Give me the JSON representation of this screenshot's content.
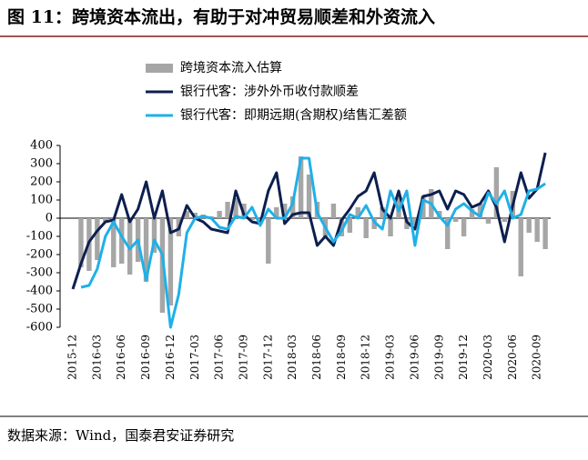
{
  "title": "图 11：跨境资本流出，有助于对冲贸易顺差和外资流入",
  "source": "数据来源：Wind，国泰君安证券研究",
  "chart_data": {
    "type": "bar-line",
    "categories": [
      "2015-12",
      null,
      null,
      "2016-03",
      null,
      null,
      "2016-06",
      null,
      null,
      "2016-09",
      null,
      null,
      "2016-12",
      null,
      null,
      "2017-03",
      null,
      null,
      "2017-06",
      null,
      null,
      "2017-09",
      null,
      null,
      "2017-12",
      null,
      null,
      "2018-03",
      null,
      null,
      "2018-06",
      null,
      null,
      "2018-09",
      null,
      null,
      "2018-12",
      null,
      null,
      "2019-03",
      null,
      null,
      "2019-06",
      null,
      null,
      "2019-09",
      null,
      null,
      "2019-12",
      null,
      null,
      "2020-03",
      null,
      null,
      "2020-06",
      null,
      null,
      "2020-09",
      null
    ],
    "series": [
      {
        "name": "跨境资本流入估算",
        "type": "bar",
        "color": "#a6a6a6",
        "values": [
          null,
          -270,
          -290,
          -230,
          -20,
          -270,
          -250,
          -310,
          -240,
          -350,
          -190,
          -520,
          -480,
          -100,
          40,
          30,
          20,
          10,
          40,
          90,
          110,
          80,
          -10,
          0,
          -250,
          60,
          80,
          120,
          340,
          240,
          90,
          -110,
          80,
          -100,
          -80,
          60,
          -110,
          -60,
          60,
          -100,
          120,
          -60,
          -40,
          120,
          160,
          40,
          -170,
          -20,
          -100,
          50,
          80,
          -30,
          280,
          -20,
          150,
          -320,
          -80,
          -130,
          -170
        ]
      },
      {
        "name": "银行代客：涉外外币收付款顺差",
        "type": "line",
        "color": "#0d1f4f",
        "values": [
          -390,
          -250,
          -130,
          -70,
          -20,
          -10,
          130,
          -20,
          50,
          200,
          0,
          150,
          -80,
          -60,
          70,
          0,
          -20,
          -60,
          -70,
          -80,
          150,
          20,
          -20,
          -30,
          150,
          250,
          -30,
          20,
          30,
          30,
          -150,
          -100,
          -150,
          -10,
          50,
          120,
          150,
          250,
          50,
          0,
          150,
          -20,
          -60,
          120,
          130,
          150,
          50,
          150,
          130,
          60,
          80,
          150,
          60,
          -130,
          70,
          250,
          110,
          160,
          360
        ]
      },
      {
        "name": "银行代客：即期远期(含期权)结售汇差额",
        "type": "line",
        "color": "#1fb0e8",
        "values": [
          null,
          -380,
          -370,
          -280,
          -100,
          -20,
          -100,
          -170,
          -120,
          -340,
          -120,
          -200,
          -600,
          -420,
          -80,
          0,
          10,
          0,
          -50,
          -60,
          10,
          0,
          60,
          -40,
          50,
          0,
          0,
          80,
          330,
          330,
          30,
          -50,
          -130,
          -70,
          20,
          0,
          70,
          -20,
          -60,
          150,
          40,
          150,
          -150,
          100,
          80,
          10,
          -40,
          50,
          80,
          40,
          10,
          140,
          80,
          150,
          0,
          20,
          150,
          160,
          190
        ]
      }
    ],
    "ylim": [
      -600,
      400
    ],
    "yticks": [
      -600,
      -500,
      -400,
      -300,
      -200,
      -100,
      0,
      100,
      200,
      300,
      400
    ]
  }
}
